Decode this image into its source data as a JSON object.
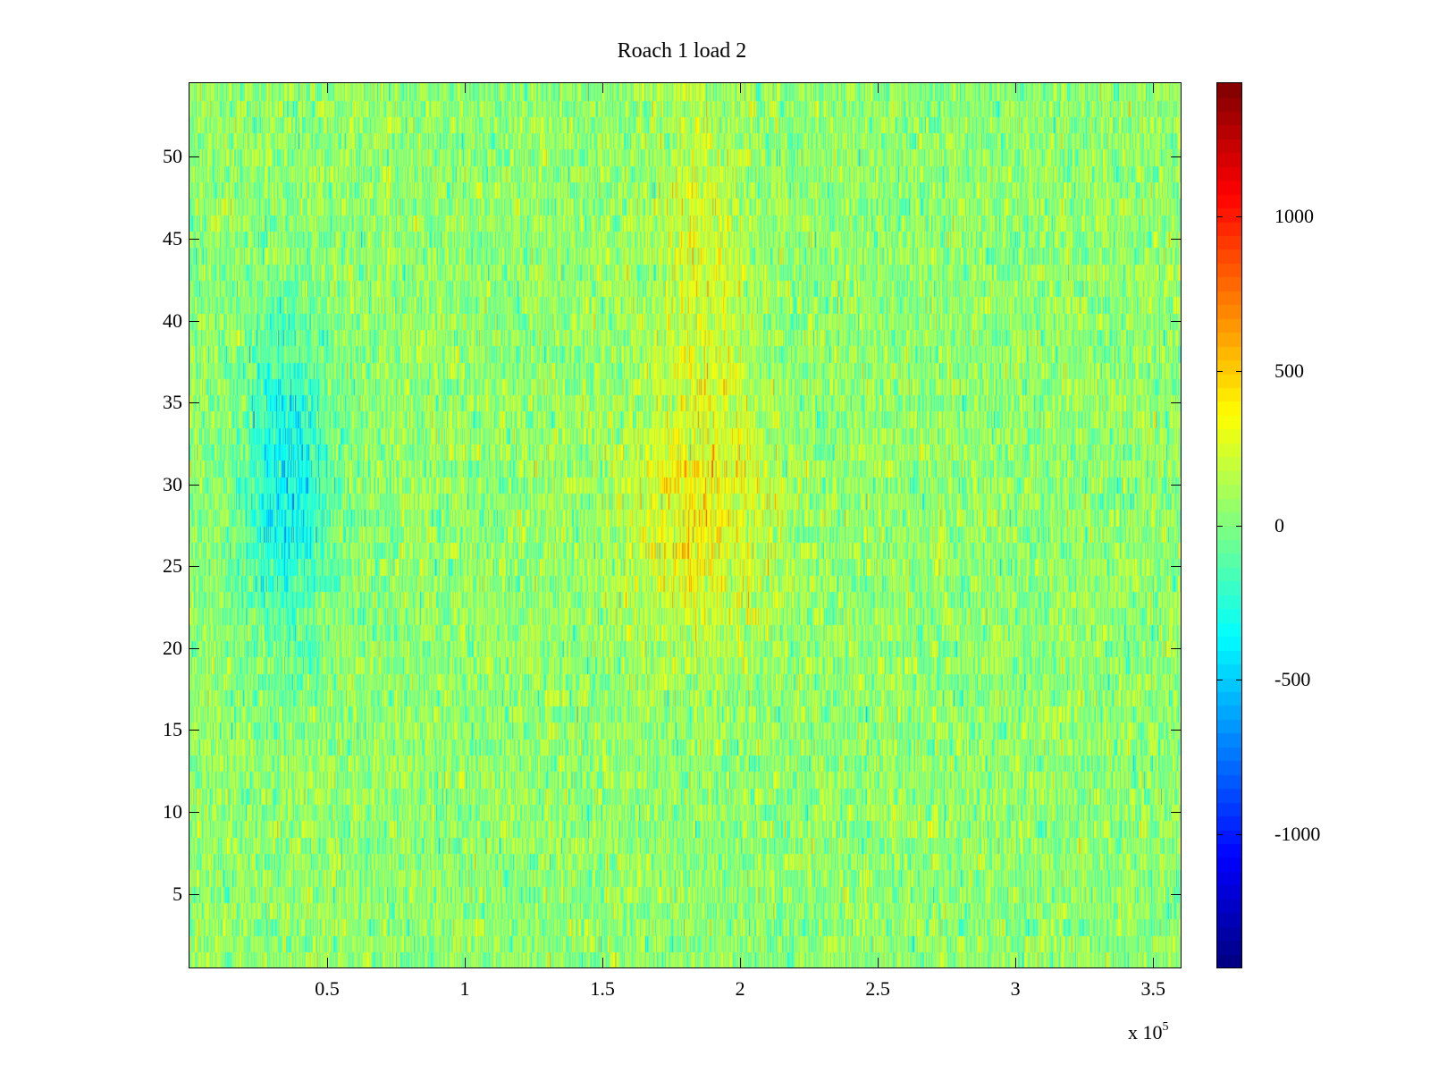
{
  "figure": {
    "title": "Roach 1 load 2"
  },
  "chart_data": {
    "type": "heatmap",
    "title": "Roach 1 load 2",
    "xlabel": "",
    "ylabel": "",
    "x_ticks": [
      0.5,
      1,
      1.5,
      2,
      2.5,
      3,
      3.5
    ],
    "x_tick_labels": [
      "0.5",
      "1",
      "1.5",
      "2",
      "2.5",
      "3",
      "3.5"
    ],
    "x_multiplier_text": "x 10",
    "x_multiplier_exponent": "5",
    "xlim": [
      0,
      3.6
    ],
    "y_ticks": [
      5,
      10,
      15,
      20,
      25,
      30,
      35,
      40,
      45,
      50
    ],
    "y_tick_labels": [
      "5",
      "10",
      "15",
      "20",
      "25",
      "30",
      "35",
      "40",
      "45",
      "50"
    ],
    "ylim": [
      0.5,
      54.5
    ],
    "rows": 54,
    "colormap": "jet",
    "colorbar": {
      "ticks": [
        -1000,
        -500,
        0,
        500,
        1000
      ],
      "tick_labels": [
        "-1000",
        "-500",
        "0",
        "500",
        "1000"
      ],
      "clim": [
        -1430,
        1430
      ]
    },
    "value_description_note": "",
    "regions": [
      {
        "x_range": [
          0.2,
          0.5
        ],
        "y_range": [
          25,
          35
        ],
        "mean": -350
      },
      {
        "x_range": [
          1.6,
          2.1
        ],
        "y_range": [
          25,
          32
        ],
        "mean": 350
      },
      {
        "x_range": [
          1.7,
          2.0
        ],
        "y_range": [
          40,
          50
        ],
        "mean": 250
      }
    ],
    "baseline_mean": 50,
    "noise_amplitude": 260
  }
}
